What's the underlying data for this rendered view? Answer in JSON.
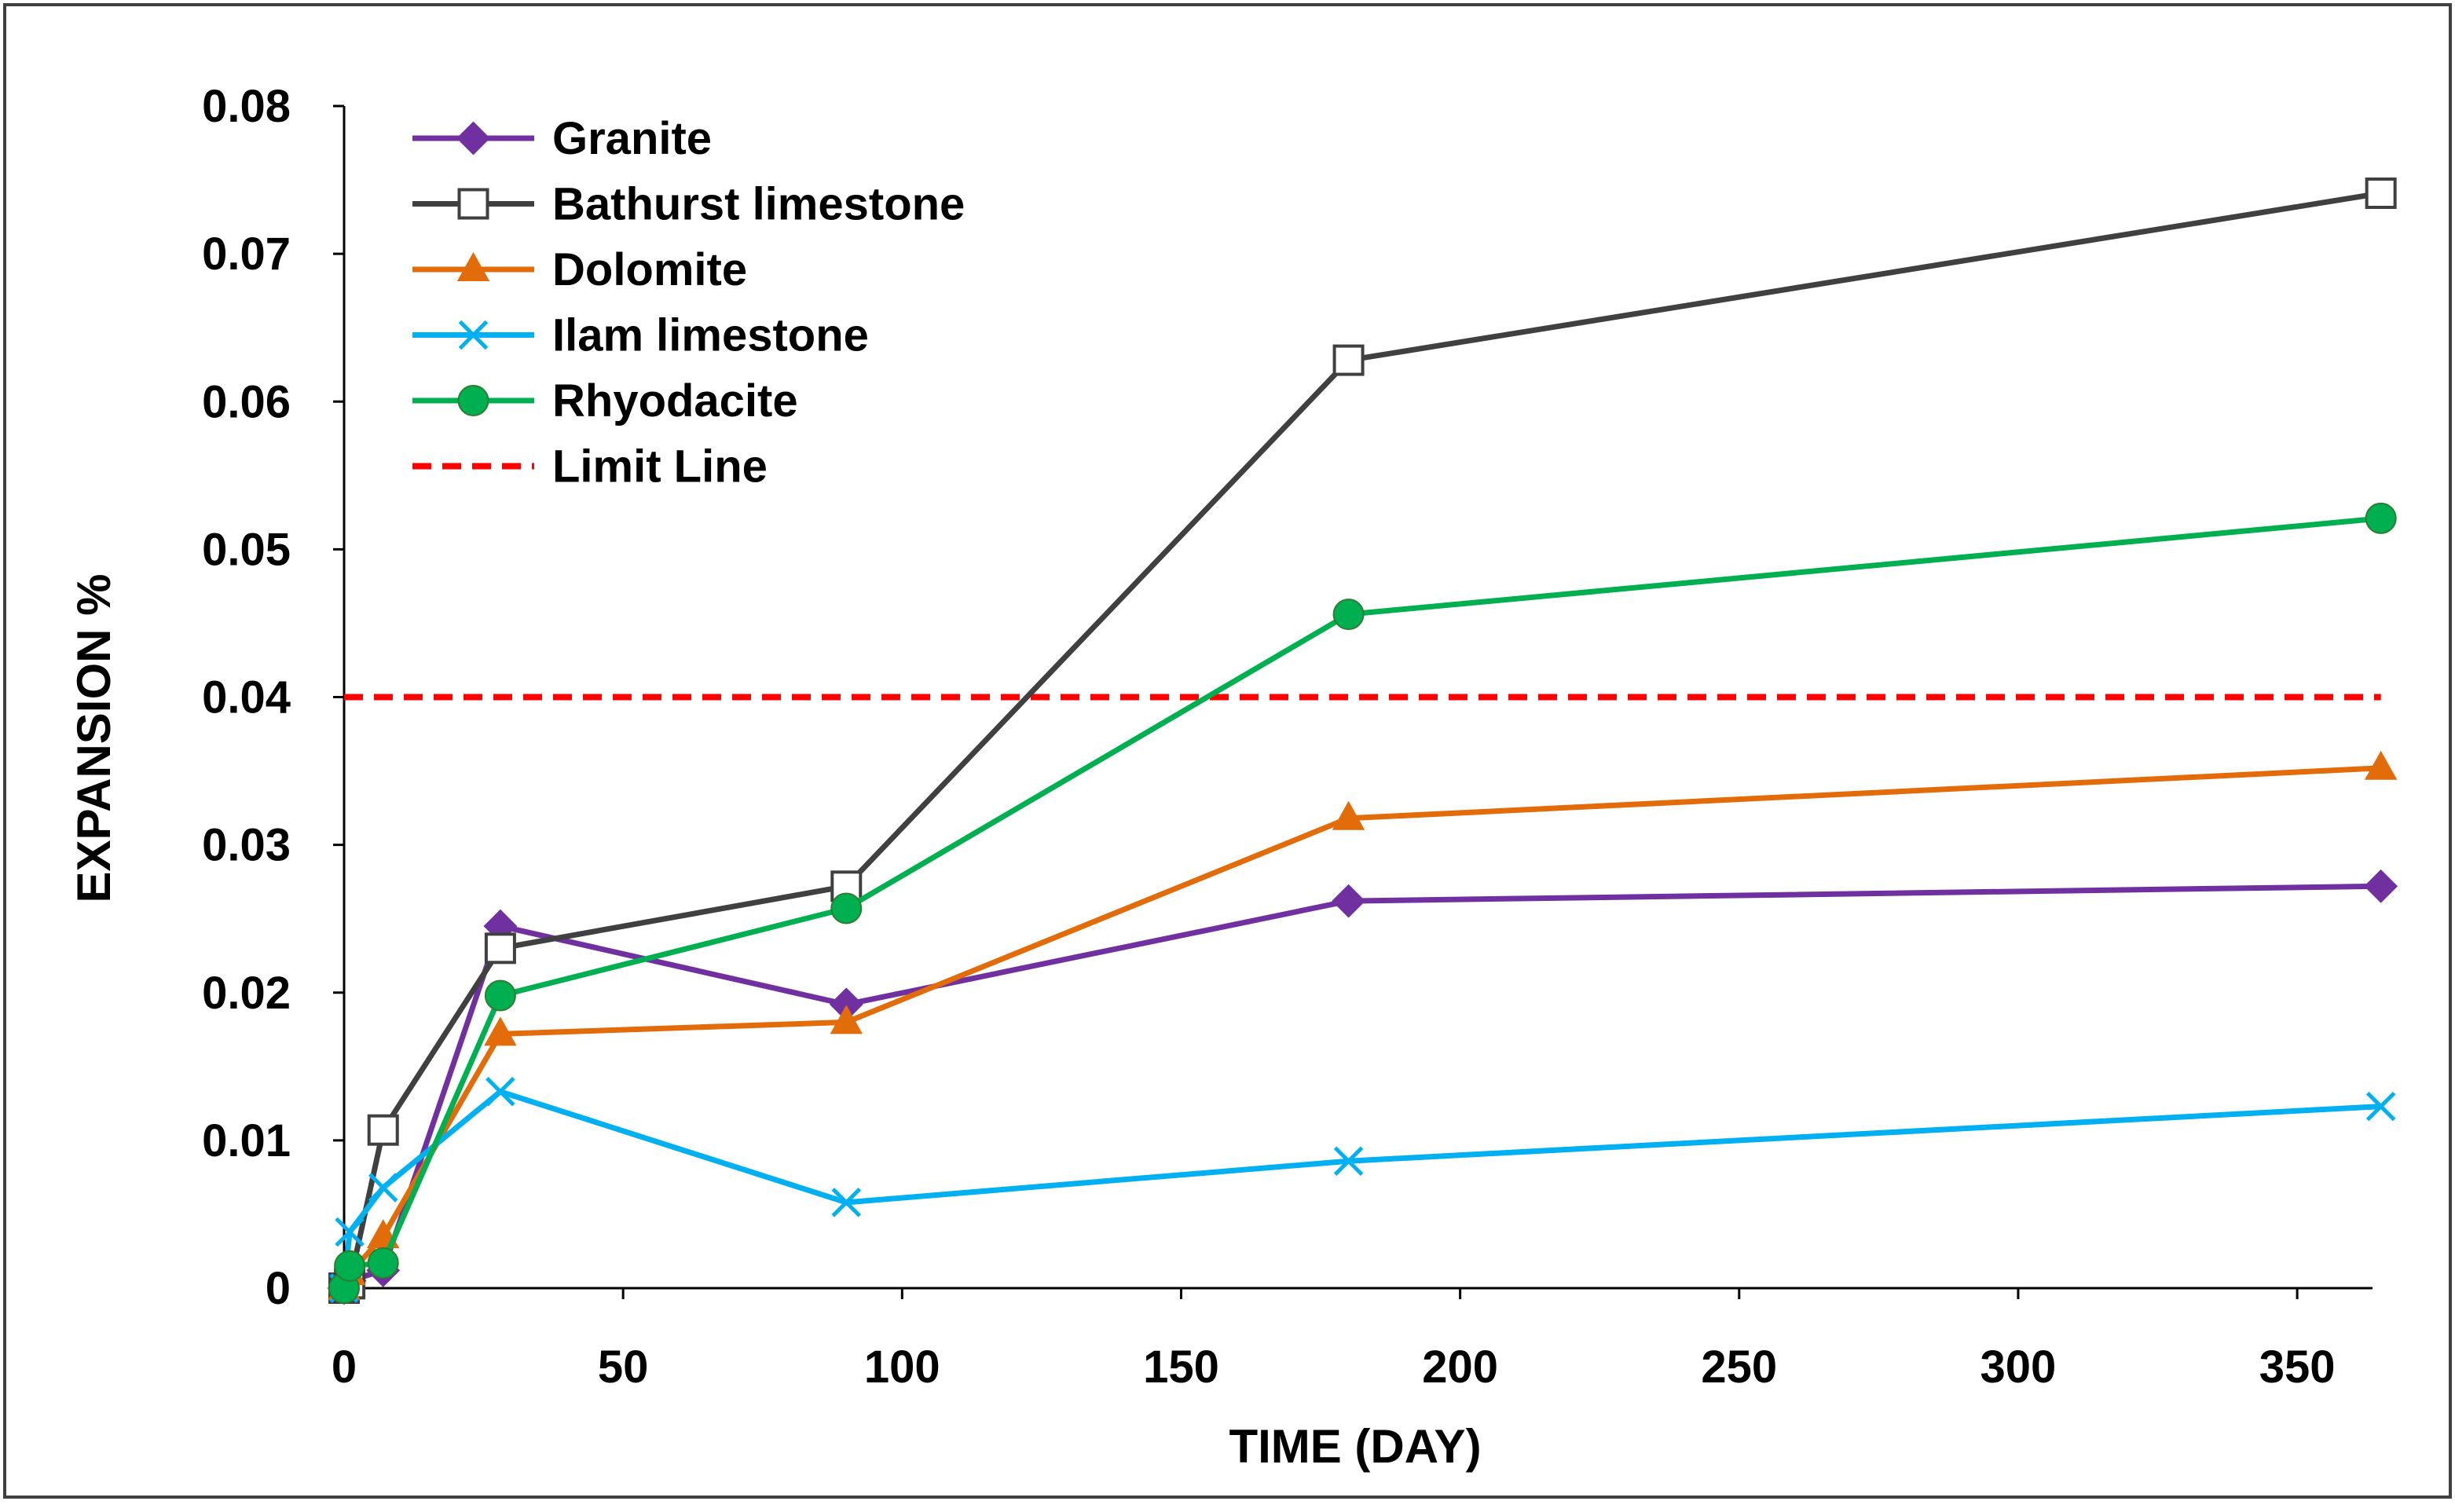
{
  "chart_data": {
    "type": "line",
    "xlabel": "TIME (DAY)",
    "ylabel": "EXPANSION %",
    "xlim": [
      0,
      380
    ],
    "ylim": [
      0,
      0.08
    ],
    "xticks": [
      0,
      50,
      100,
      150,
      200,
      250,
      300,
      350
    ],
    "yticks": [
      0,
      0.01,
      0.02,
      0.03,
      0.04,
      0.05,
      0.06,
      0.07,
      0.08
    ],
    "ytick_labels": [
      "0",
      "0.01",
      "0.02",
      "0.03",
      "0.04",
      "0.05",
      "0.06",
      "0.07",
      "0.08"
    ],
    "grid": false,
    "legend_position": "top-left",
    "series": [
      {
        "name": "Granite",
        "color": "#7030a0",
        "marker": "diamond",
        "dash": false,
        "points": [
          [
            0,
            0
          ],
          [
            1,
            0.0005
          ],
          [
            7,
            0.0012
          ],
          [
            28,
            0.0245
          ],
          [
            90,
            0.0192
          ],
          [
            180,
            0.0262
          ],
          [
            365,
            0.0272
          ]
        ]
      },
      {
        "name": "Bathurst limestone",
        "color": "#404040",
        "marker": "square-open",
        "dash": false,
        "points": [
          [
            0,
            0
          ],
          [
            1,
            0.0003
          ],
          [
            7,
            0.0107
          ],
          [
            28,
            0.023
          ],
          [
            90,
            0.0272
          ],
          [
            180,
            0.0628
          ],
          [
            365,
            0.0741
          ]
        ]
      },
      {
        "name": "Dolomite",
        "color": "#e36c0a",
        "marker": "triangle",
        "dash": false,
        "points": [
          [
            0,
            0
          ],
          [
            1,
            0.001
          ],
          [
            7,
            0.0035
          ],
          [
            28,
            0.0172
          ],
          [
            90,
            0.018
          ],
          [
            180,
            0.0318
          ],
          [
            365,
            0.0352
          ]
        ]
      },
      {
        "name": "Ilam limestone",
        "color": "#00b0f0",
        "marker": "x",
        "dash": false,
        "points": [
          [
            0,
            0
          ],
          [
            1,
            0.0038
          ],
          [
            7,
            0.0068
          ],
          [
            28,
            0.0133
          ],
          [
            90,
            0.0058
          ],
          [
            180,
            0.0086
          ],
          [
            365,
            0.0123
          ]
        ]
      },
      {
        "name": "Rhyodacite",
        "color": "#00b050",
        "marker": "circle",
        "dash": false,
        "points": [
          [
            0,
            0
          ],
          [
            1,
            0.0015
          ],
          [
            7,
            0.0017
          ],
          [
            28,
            0.0198
          ],
          [
            90,
            0.0257
          ],
          [
            180,
            0.0456
          ],
          [
            365,
            0.0521
          ]
        ]
      },
      {
        "name": "Limit Line",
        "color": "#ff0000",
        "marker": "none",
        "dash": true,
        "points": [
          [
            0,
            0.04
          ],
          [
            365,
            0.04
          ]
        ]
      }
    ]
  }
}
